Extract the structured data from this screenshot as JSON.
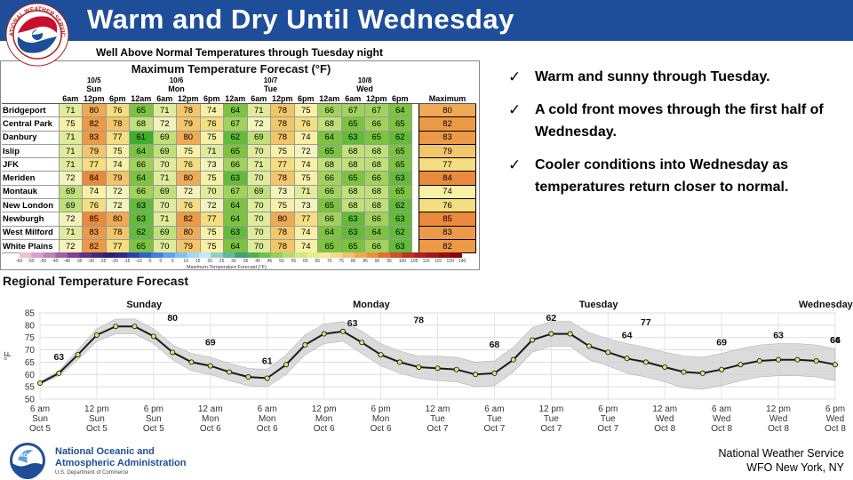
{
  "header": {
    "title": "Warm and Dry Until Wednesday",
    "subtitle": "Well Above Normal Temperatures through Tuesday night",
    "logo_text": "NATIONAL WEATHER SERVICE"
  },
  "table": {
    "title": "Maximum Temperature Forecast (°F)",
    "days": [
      {
        "date": "10/5",
        "day": "Sun",
        "times": [
          "6am",
          "12pm",
          "6pm"
        ]
      },
      {
        "date": "10/6",
        "day": "Mon",
        "times": [
          "12am",
          "6am",
          "12pm",
          "6pm"
        ]
      },
      {
        "date": "10/7",
        "day": "Tue",
        "times": [
          "12am",
          "6am",
          "12pm",
          "6pm"
        ]
      },
      {
        "date": "10/8",
        "day": "Wed",
        "times": [
          "12am",
          "6am",
          "12pm",
          "6pm"
        ]
      }
    ],
    "max_header": "Maximum",
    "rows": [
      {
        "loc": "Bridgeport",
        "vals": [
          71,
          80,
          76,
          65,
          71,
          78,
          74,
          64,
          71,
          78,
          75,
          66,
          67,
          67,
          64
        ],
        "max": 80
      },
      {
        "loc": "Central Park",
        "vals": [
          75,
          82,
          78,
          68,
          72,
          79,
          76,
          67,
          72,
          78,
          76,
          68,
          65,
          66,
          65
        ],
        "max": 82
      },
      {
        "loc": "Danbury",
        "vals": [
          71,
          83,
          77,
          61,
          69,
          80,
          75,
          62,
          69,
          78,
          74,
          64,
          63,
          65,
          62
        ],
        "max": 83
      },
      {
        "loc": "Islip",
        "vals": [
          71,
          79,
          75,
          64,
          69,
          75,
          71,
          65,
          70,
          75,
          72,
          65,
          68,
          68,
          65
        ],
        "max": 79
      },
      {
        "loc": "JFK",
        "vals": [
          71,
          77,
          74,
          66,
          70,
          76,
          73,
          66,
          71,
          77,
          74,
          68,
          68,
          68,
          65
        ],
        "max": 77
      },
      {
        "loc": "Meriden",
        "vals": [
          72,
          84,
          79,
          64,
          71,
          80,
          75,
          63,
          70,
          78,
          75,
          66,
          65,
          66,
          63
        ],
        "max": 84
      },
      {
        "loc": "Montauk",
        "vals": [
          69,
          74,
          72,
          66,
          69,
          72,
          70,
          67,
          69,
          73,
          71,
          66,
          68,
          68,
          65
        ],
        "max": 74
      },
      {
        "loc": "New London",
        "vals": [
          69,
          76,
          72,
          63,
          70,
          76,
          72,
          64,
          70,
          75,
          73,
          65,
          68,
          68,
          62
        ],
        "max": 76
      },
      {
        "loc": "Newburgh",
        "vals": [
          72,
          85,
          80,
          63,
          71,
          82,
          77,
          64,
          70,
          80,
          77,
          66,
          63,
          66,
          63
        ],
        "max": 85
      },
      {
        "loc": "West Milford",
        "vals": [
          71,
          83,
          78,
          62,
          69,
          80,
          75,
          63,
          70,
          78,
          74,
          64,
          63,
          64,
          62
        ],
        "max": 83
      },
      {
        "loc": "White Plains",
        "vals": [
          72,
          82,
          77,
          65,
          70,
          79,
          75,
          64,
          70,
          78,
          74,
          65,
          65,
          66,
          63
        ],
        "max": 82
      }
    ],
    "colorbar_ticks": [
      "-60",
      "-55",
      "-50",
      "-45",
      "-40",
      "-35",
      "-30",
      "-25",
      "-20",
      "-15",
      "-10",
      "-5",
      "0",
      "5",
      "10",
      "15",
      "20",
      "25",
      "30",
      "35",
      "40",
      "45",
      "50",
      "55",
      "60",
      "65",
      "70",
      "75",
      "80",
      "85",
      "90",
      "95",
      "100",
      "105",
      "110",
      "115",
      "120",
      "140"
    ],
    "colorbar_label": "Maximum Temperature Forecast (°F)"
  },
  "bullets": [
    "Warm and sunny through Tuesday.",
    "A cold front moves through the first half of Wednesday.",
    "Cooler conditions into Wednesday as temperatures return closer to normal."
  ],
  "chart_data": {
    "type": "line",
    "title": "Regional Temperature Forecast",
    "ylabel": "°F",
    "ylim": [
      50,
      85
    ],
    "yticks": [
      50,
      55,
      60,
      65,
      70,
      75,
      80,
      85
    ],
    "grid": true,
    "x_tick_labels": [
      [
        "6 am",
        "Sun",
        "Oct 5"
      ],
      [
        "12 pm",
        "Sun",
        "Oct 5"
      ],
      [
        "6 pm",
        "Sun",
        "Oct 5"
      ],
      [
        "12 am",
        "Mon",
        "Oct 6"
      ],
      [
        "6 am",
        "Mon",
        "Oct 6"
      ],
      [
        "12 pm",
        "Mon",
        "Oct 6"
      ],
      [
        "6 pm",
        "Mon",
        "Oct 6"
      ],
      [
        "12 am",
        "Tue",
        "Oct 7"
      ],
      [
        "6 am",
        "Tue",
        "Oct 7"
      ],
      [
        "12 pm",
        "Tue",
        "Oct 7"
      ],
      [
        "6 pm",
        "Tue",
        "Oct 7"
      ],
      [
        "12 am",
        "Wed",
        "Oct 8"
      ],
      [
        "6 am",
        "Wed",
        "Oct 8"
      ],
      [
        "12 pm",
        "Wed",
        "Oct 8"
      ],
      [
        "6 pm",
        "Wed",
        "Oct 8"
      ]
    ],
    "hours_from_start": [
      0,
      2,
      4,
      6,
      8,
      10,
      12,
      14,
      16,
      18,
      20,
      22,
      24,
      26,
      28,
      30,
      32,
      34,
      36,
      38,
      40,
      42,
      44,
      46,
      48,
      50,
      52,
      54,
      56,
      58,
      60,
      62,
      64,
      66,
      68,
      70,
      72,
      74,
      76,
      78,
      80,
      82,
      84
    ],
    "values": [
      56.5,
      60.5,
      68,
      76,
      79.5,
      79.5,
      75.5,
      69,
      65,
      63.5,
      61,
      59,
      58.5,
      64,
      72,
      76.5,
      77.5,
      73,
      68,
      65,
      63,
      62.5,
      62,
      60,
      60.5,
      66,
      74,
      76.5,
      76.5,
      71.5,
      69,
      66.5,
      65,
      63,
      61,
      60.5,
      62,
      64,
      65.5,
      66,
      66,
      65.5,
      64
    ],
    "band_width": [
      0.5,
      1,
      2,
      2.5,
      3,
      3,
      3,
      3,
      3.5,
      3.5,
      3.5,
      3.5,
      3.5,
      4,
      4,
      4,
      4,
      4.5,
      4.5,
      4.5,
      4.5,
      5,
      5,
      5,
      5,
      5,
      5,
      5,
      5,
      5.5,
      5.5,
      6,
      6,
      6,
      6.5,
      6.5,
      6.5,
      6.5,
      6.5,
      6.5,
      6.5,
      6.5,
      6.5
    ],
    "annotations": [
      {
        "text": "Sunday",
        "hour": 11
      },
      {
        "text": "Monday",
        "hour": 35
      },
      {
        "text": "Tuesday",
        "hour": 59
      },
      {
        "text": "Wednesday",
        "hour": 83
      }
    ],
    "data_labels": [
      {
        "text": "63",
        "hour": 2
      },
      {
        "text": "80",
        "hour": 14
      },
      {
        "text": "69",
        "hour": 18
      },
      {
        "text": "61",
        "hour": 24
      },
      {
        "text": "63",
        "hour": 33
      },
      {
        "text": "78",
        "hour": 40
      },
      {
        "text": "68",
        "hour": 48
      },
      {
        "text": "62",
        "hour": 54
      },
      {
        "text": "64",
        "hour": 62
      },
      {
        "text": "77",
        "hour": 64
      },
      {
        "text": "69",
        "hour": 72
      },
      {
        "text": "63",
        "hour": 78
      },
      {
        "text": "64",
        "hour": 84
      },
      {
        "text": "66",
        "hour": 88
      }
    ]
  },
  "footer": {
    "agency_line1": "National Oceanic and",
    "agency_line2": "Atmospheric Administration",
    "dept": "U.S. Department of Commerce",
    "logo_text": "NOAA",
    "office_line1": "National Weather Service",
    "office_line2": "WFO New York, NY"
  },
  "colors": {
    "header_blue": "#1e4e9a",
    "line": "#1a1a1a",
    "marker": "#d7e86b",
    "band": "#cfcfcf"
  }
}
